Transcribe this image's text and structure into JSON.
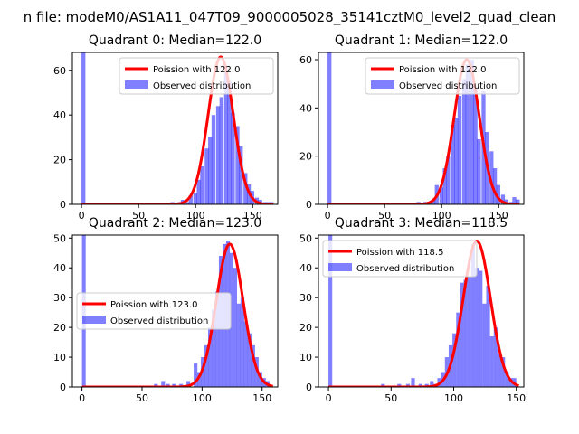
{
  "figure": {
    "suptitle": "n file: modeM0/AS1A11_047T09_9000005028_35141cztM0_level2_quad_clean"
  },
  "colors": {
    "hist": "#0000ff",
    "fit": "#ff0000"
  },
  "chart_data": [
    {
      "type": "bar",
      "title": "Quadrant 0: Median=122.0",
      "xlim": [
        -8,
        172
      ],
      "ylim": [
        0,
        68
      ],
      "xticks": [
        0,
        50,
        100,
        150
      ],
      "yticks": [
        0,
        20,
        40,
        60
      ],
      "legend_position": "top-right",
      "legend": [
        "Poission with 122.0",
        "Observed distribution"
      ],
      "poisson_mean": 122.0,
      "poisson_peak": 66,
      "bin_width": 3.4,
      "hist_x": [
        0,
        78,
        84,
        87,
        91,
        94,
        98,
        101,
        104,
        108,
        111,
        114,
        118,
        121,
        125,
        128,
        131,
        135,
        138,
        142,
        145,
        148,
        152,
        155,
        159,
        162,
        165
      ],
      "hist_y": [
        68,
        1,
        1,
        2,
        1,
        4,
        5,
        11,
        17,
        25,
        30,
        40,
        44,
        48,
        59,
        55,
        41,
        35,
        26,
        14,
        9,
        6,
        3,
        2,
        1,
        1,
        1
      ]
    },
    {
      "type": "bar",
      "title": "Quadrant 1: Median=122.0",
      "xlim": [
        -8,
        172
      ],
      "ylim": [
        0,
        63
      ],
      "xticks": [
        0,
        50,
        100,
        150
      ],
      "yticks": [
        0,
        20,
        40,
        60
      ],
      "legend_position": "top-right",
      "legend": [
        "Poission with 122.0",
        "Observed distribution"
      ],
      "poisson_mean": 122.0,
      "poisson_peak": 60,
      "bin_width": 3.4,
      "hist_x": [
        0,
        78,
        84,
        88,
        91,
        94,
        98,
        101,
        104,
        108,
        111,
        114,
        118,
        121,
        125,
        128,
        131,
        135,
        138,
        142,
        145,
        148,
        152,
        155,
        159,
        162,
        165
      ],
      "hist_y": [
        63,
        1,
        1,
        1,
        2,
        8,
        7,
        15,
        20,
        33,
        36,
        45,
        52,
        58,
        60,
        48,
        27,
        47,
        30,
        22,
        15,
        8,
        4,
        2,
        1,
        3,
        2
      ]
    },
    {
      "type": "bar",
      "title": "Quadrant 2: Median=123.0",
      "xlim": [
        -8,
        163
      ],
      "ylim": [
        0,
        51
      ],
      "xticks": [
        0,
        50,
        100,
        150
      ],
      "yticks": [
        0,
        10,
        20,
        30,
        40,
        50
      ],
      "legend_position": "center-left",
      "legend": [
        "Poission with 123.0",
        "Observed distribution"
      ],
      "poisson_mean": 123.0,
      "poisson_peak": 48,
      "bin_width": 3.1,
      "hist_x": [
        0,
        60,
        66,
        70,
        75,
        81,
        87,
        93,
        96,
        99,
        102,
        105,
        108,
        111,
        114,
        117,
        120,
        123,
        126,
        129,
        132,
        135,
        138,
        141,
        144,
        147,
        150,
        153
      ],
      "hist_y": [
        51,
        1,
        2,
        1,
        1,
        1,
        2,
        8,
        5,
        10,
        14,
        20,
        26,
        32,
        44,
        48,
        49,
        45,
        40,
        28,
        30,
        22,
        18,
        14,
        10,
        5,
        3,
        2
      ]
    },
    {
      "type": "bar",
      "title": "Quadrant 3: Median=118.5",
      "xlim": [
        -8,
        156
      ],
      "ylim": [
        0,
        51
      ],
      "xticks": [
        0,
        50,
        100,
        150
      ],
      "yticks": [
        0,
        10,
        20,
        30,
        40,
        50
      ],
      "legend_position": "top-left",
      "legend": [
        "Poission with 118.5",
        "Observed distribution"
      ],
      "poisson_mean": 118.5,
      "poisson_peak": 49,
      "bin_width": 3.0,
      "hist_x": [
        0,
        42,
        55,
        62,
        66,
        72,
        77,
        81,
        84,
        87,
        90,
        93,
        96,
        99,
        102,
        105,
        108,
        111,
        114,
        117,
        120,
        123,
        126,
        129,
        132,
        135,
        138,
        141,
        144,
        147
      ],
      "hist_y": [
        51,
        1,
        1,
        1,
        3,
        1,
        1,
        2,
        1,
        3,
        5,
        10,
        14,
        18,
        25,
        35,
        36,
        37,
        48,
        40,
        39,
        28,
        34,
        17,
        20,
        11,
        10,
        5,
        3,
        3
      ]
    }
  ]
}
